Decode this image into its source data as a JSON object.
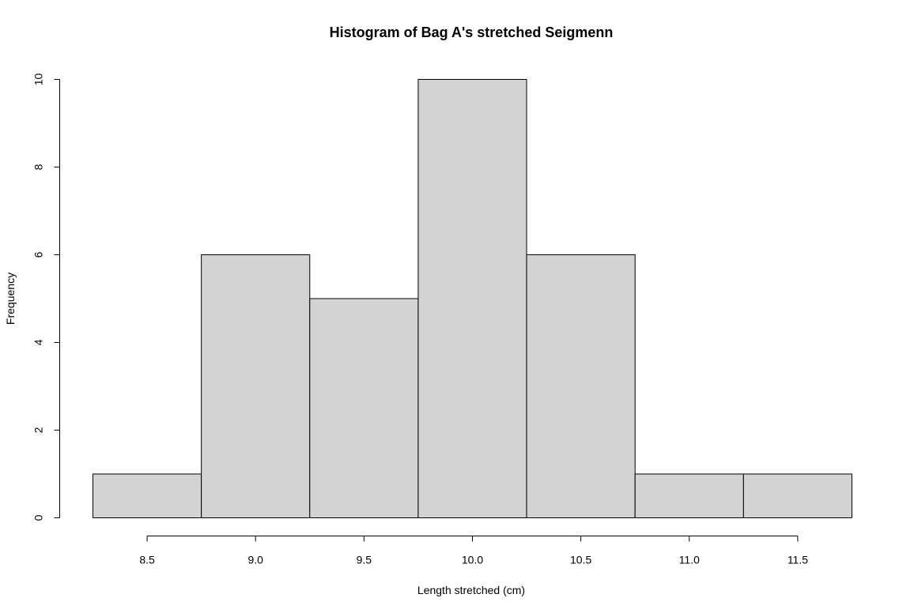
{
  "chart_data": {
    "type": "bar",
    "histogram": true,
    "title": "Histogram of Bag A's stretched Seigmenn",
    "xlabel": "Length stretched (cm)",
    "ylabel": "Frequency",
    "bins": [
      {
        "from": 8.25,
        "to": 8.75,
        "count": 1
      },
      {
        "from": 8.75,
        "to": 9.25,
        "count": 6
      },
      {
        "from": 9.25,
        "to": 9.75,
        "count": 5
      },
      {
        "from": 9.75,
        "to": 10.25,
        "count": 10
      },
      {
        "from": 10.25,
        "to": 10.75,
        "count": 6
      },
      {
        "from": 10.75,
        "to": 11.25,
        "count": 1
      },
      {
        "from": 11.25,
        "to": 11.75,
        "count": 1
      }
    ],
    "x_ticks": [
      8.5,
      9.0,
      9.5,
      10.0,
      10.5,
      11.0,
      11.5
    ],
    "x_tick_labels": [
      "8.5",
      "9.0",
      "9.5",
      "10.0",
      "10.5",
      "11.0",
      "11.5"
    ],
    "y_ticks": [
      0,
      2,
      4,
      6,
      8,
      10
    ],
    "y_tick_labels": [
      "0",
      "2",
      "4",
      "6",
      "8",
      "10"
    ],
    "xlim": [
      8.25,
      11.75
    ],
    "ylim": [
      0,
      10
    ],
    "grid": false,
    "legend": "none",
    "colors": {
      "bar_fill": "#d3d3d3",
      "bar_stroke": "#000000",
      "background": "#ffffff",
      "text": "#000000"
    }
  }
}
